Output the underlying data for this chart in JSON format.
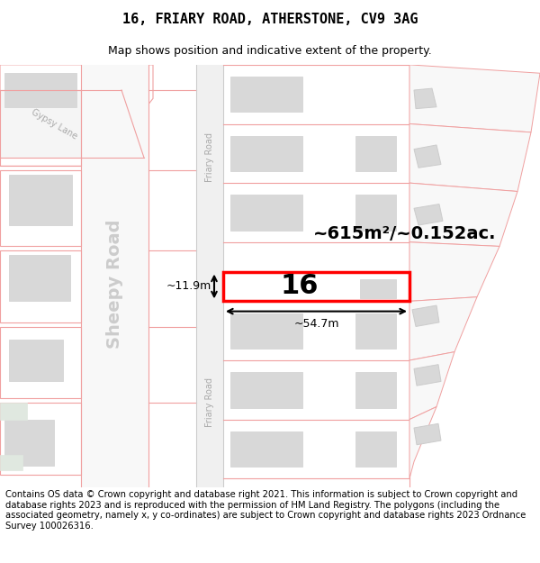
{
  "title": "16, FRIARY ROAD, ATHERSTONE, CV9 3AG",
  "subtitle": "Map shows position and indicative extent of the property.",
  "footer": "Contains OS data © Crown copyright and database right 2021. This information is subject to Crown copyright and database rights 2023 and is reproduced with the permission of HM Land Registry. The polygons (including the associated geometry, namely x, y co-ordinates) are subject to Crown copyright and database rights 2023 Ordnance Survey 100026316.",
  "map_bg": "#ffffff",
  "road_fill": "#f5f5f5",
  "boundary_color": "#f0a0a0",
  "building_fill": "#d8d8d8",
  "building_outline": "#cccccc",
  "highlight_fill": "#ffffff",
  "highlight_outline": "#ff0000",
  "area_text": "~615m²/~0.152ac.",
  "house_number": "16",
  "width_label": "~54.7m",
  "height_label": "~11.9m",
  "street_label_sheepy": "Sheepy Road",
  "street_label_friary_top": "Friary Road",
  "street_label_friary_bot": "Friary Road",
  "street_label_gypsy": "Gypsy Lane",
  "title_fontsize": 11,
  "subtitle_fontsize": 9,
  "footer_fontsize": 7.2,
  "green_fill": "#e8f0e8"
}
